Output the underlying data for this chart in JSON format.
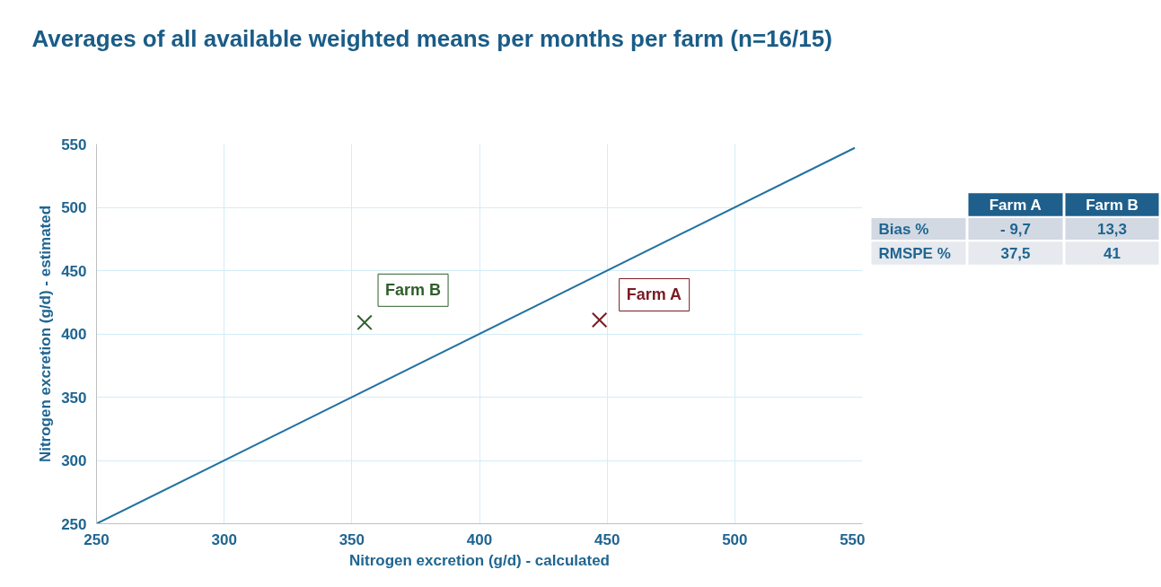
{
  "chart_data": {
    "type": "scatter",
    "title": "Averages of all available weighted means per months per farm (n=16/15)",
    "xlabel": "Nitrogen excretion (g/d) - calculated",
    "ylabel": "Nitrogen excretion (g/d) - estimated",
    "series": [
      {
        "name": "Farm A",
        "color": "#7b1c24",
        "x": [
          447
        ],
        "values": [
          411
        ],
        "marker": "cross"
      },
      {
        "name": "Farm B",
        "color": "#2e5e2a",
        "x": [
          355
        ],
        "values": [
          409
        ],
        "marker": "cross"
      },
      {
        "type": "line",
        "color": "#2272a0",
        "x": [
          250,
          547
        ],
        "values": [
          250,
          547
        ]
      }
    ],
    "xlim": [
      250,
      550
    ],
    "ylim": [
      250,
      550
    ],
    "xticks": [
      250,
      300,
      350,
      400,
      450,
      500,
      550
    ],
    "yticks": [
      250,
      300,
      350,
      400,
      450,
      500,
      550
    ],
    "grid": true,
    "annotations": [
      "Farm A",
      "Farm B",
      "Bias %",
      "- 9,7",
      "13,3",
      "RMSPE %",
      "37,5",
      "41"
    ]
  }
}
